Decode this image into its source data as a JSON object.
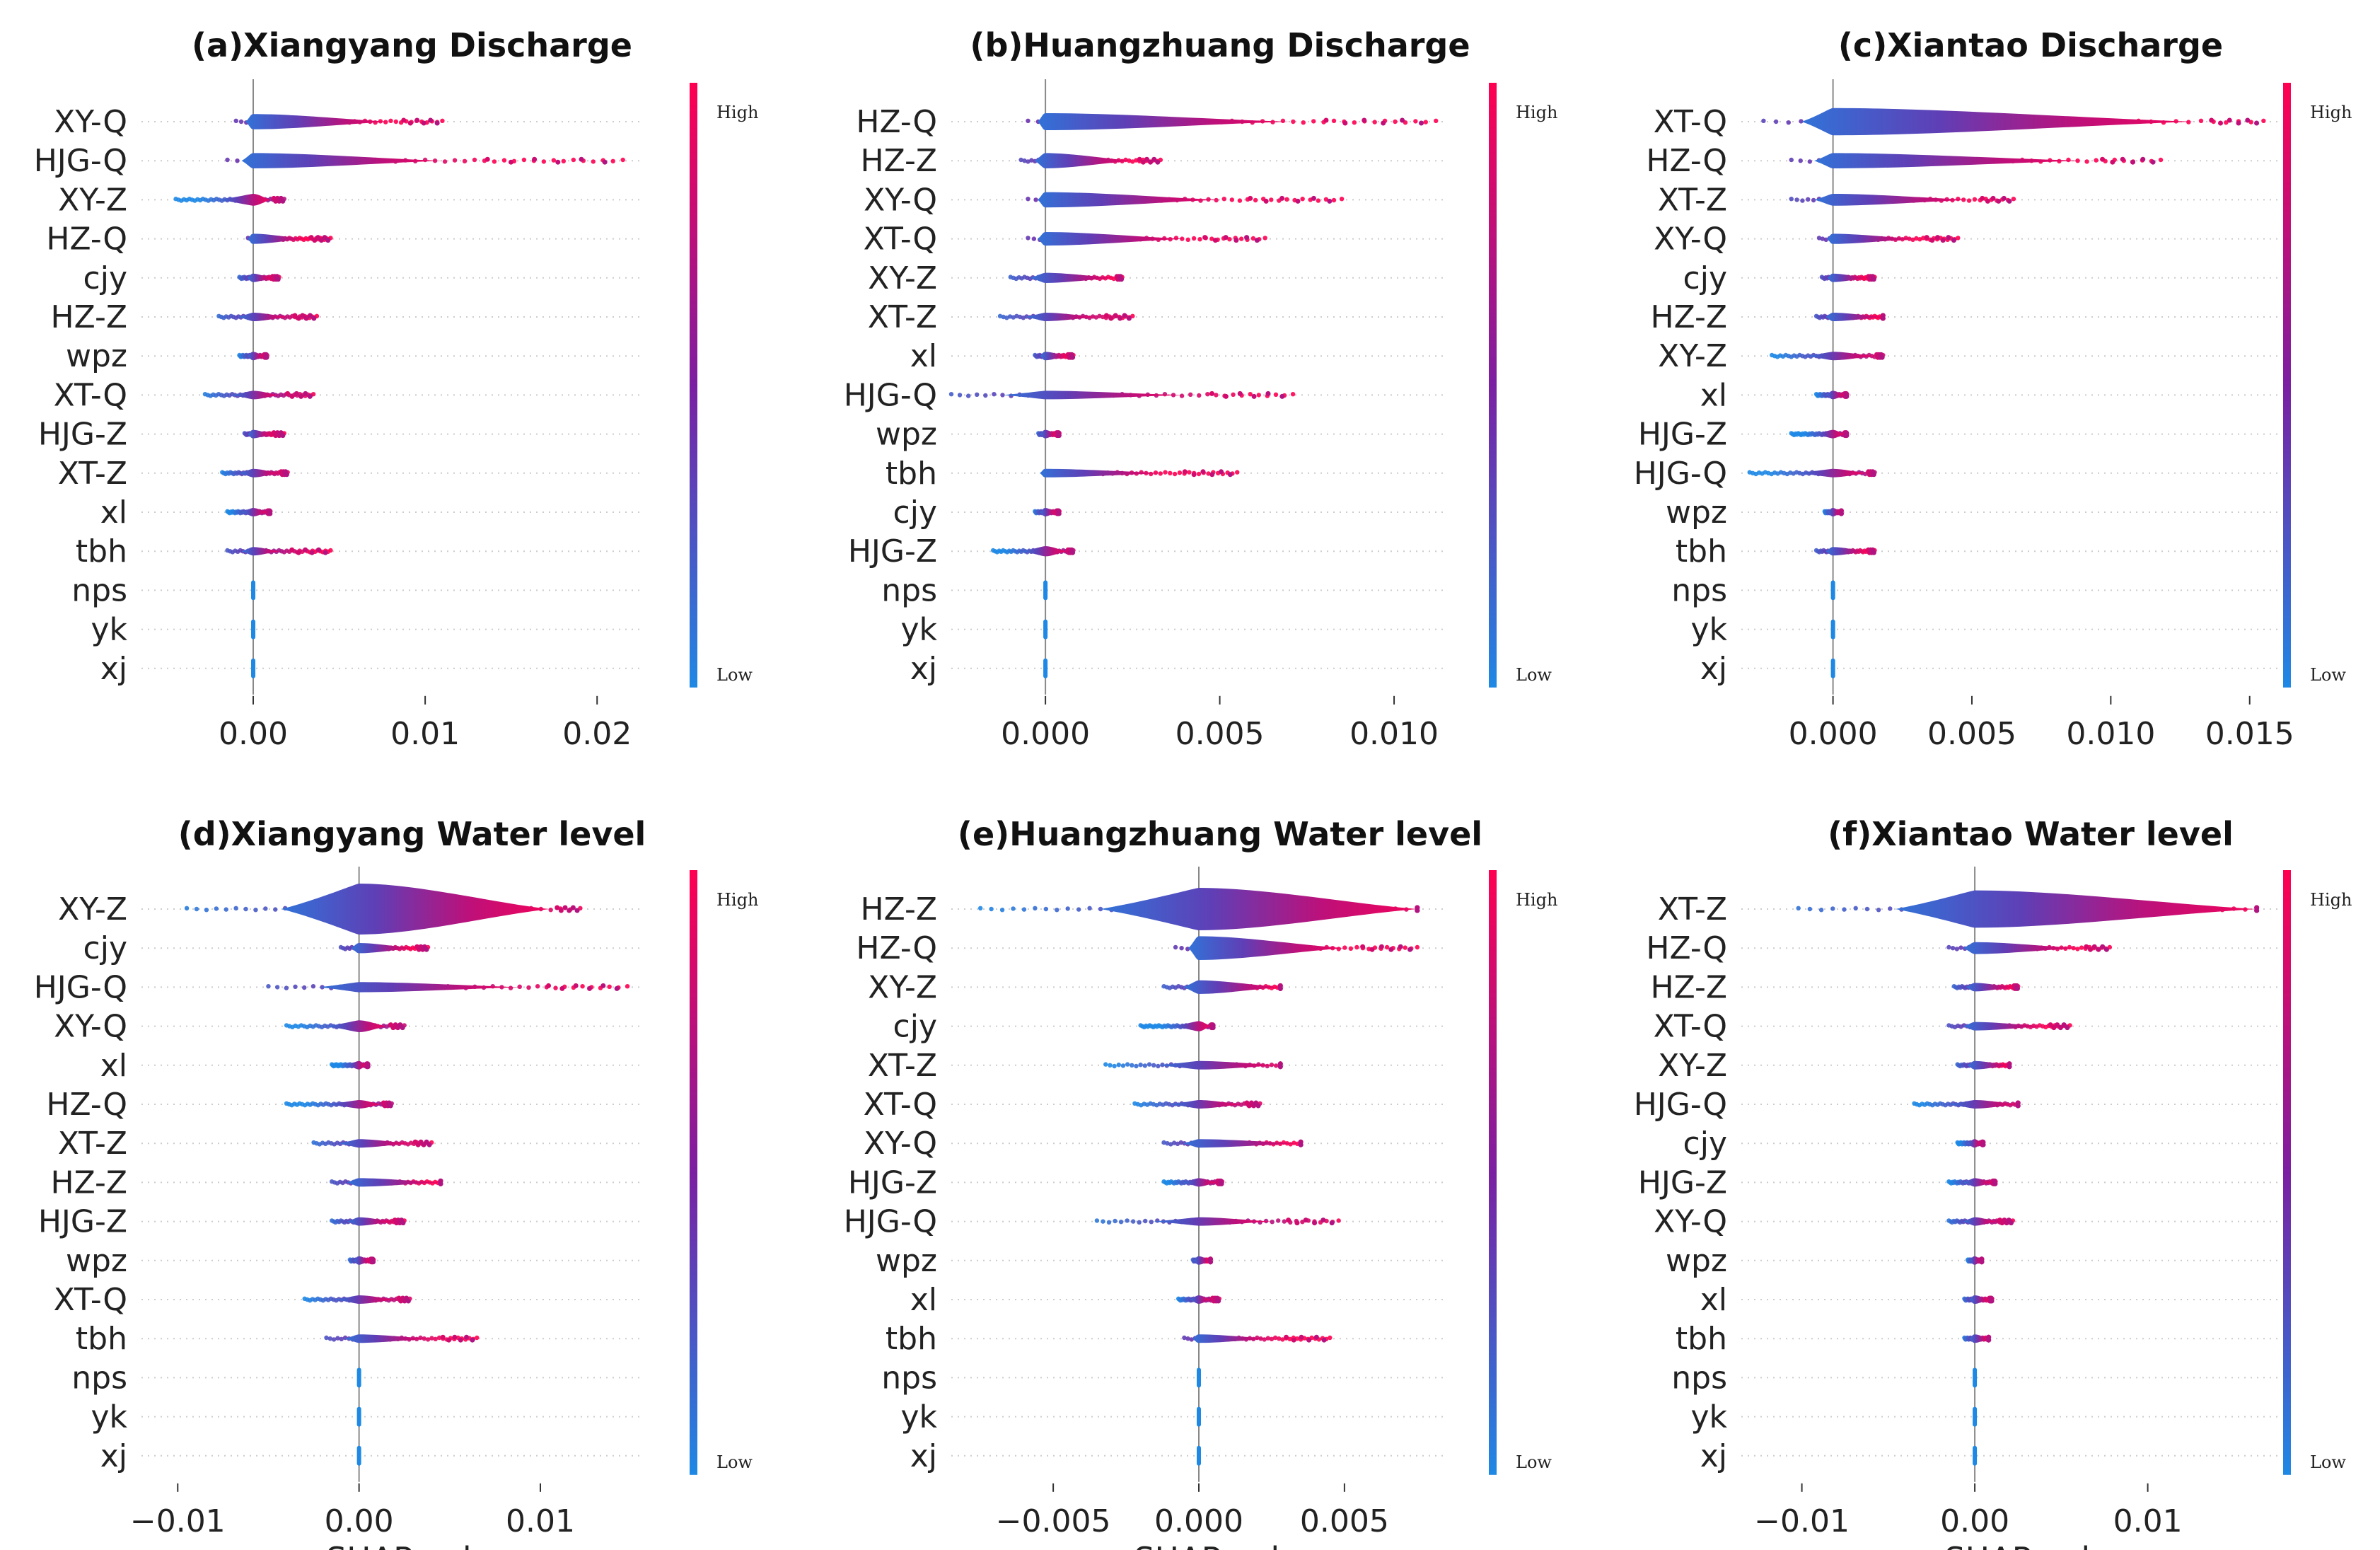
{
  "chart_data": [
    {
      "type": "scatter",
      "subtype": "shap-beeswarm",
      "title": "(a)Xiangyang Discharge",
      "xlabel": "",
      "xlim": [
        -0.0065,
        0.0225
      ],
      "xticks": [
        0.0,
        0.01,
        0.02
      ],
      "xtick_labels": [
        "0.00",
        "0.01",
        "0.02"
      ],
      "colorbar": {
        "high": "High",
        "low": "Low"
      },
      "features": [
        {
          "name": "XY-Q",
          "min": -0.001,
          "max": 0.011,
          "core": 0.008,
          "thick": 0.09
        },
        {
          "name": "HJG-Q",
          "min": -0.0015,
          "max": 0.0215,
          "core": 0.011,
          "thick": 0.09
        },
        {
          "name": "XY-Z",
          "min": -0.0045,
          "max": 0.0018,
          "core": 0.001,
          "thick": 0.07
        },
        {
          "name": "HZ-Q",
          "min": -0.0003,
          "max": 0.0045,
          "core": 0.003,
          "thick": 0.06
        },
        {
          "name": "cjy",
          "min": -0.0008,
          "max": 0.0015,
          "core": 0.001,
          "thick": 0.05
        },
        {
          "name": "HZ-Z",
          "min": -0.002,
          "max": 0.0037,
          "core": 0.002,
          "thick": 0.05
        },
        {
          "name": "wpz",
          "min": -0.0008,
          "max": 0.0008,
          "core": 0.0006,
          "thick": 0.05
        },
        {
          "name": "XT-Q",
          "min": -0.0028,
          "max": 0.0035,
          "core": 0.0015,
          "thick": 0.04
        },
        {
          "name": "HJG-Z",
          "min": -0.0005,
          "max": 0.0018,
          "core": 0.001,
          "thick": 0.05
        },
        {
          "name": "XT-Z",
          "min": -0.0018,
          "max": 0.002,
          "core": 0.0015,
          "thick": 0.05
        },
        {
          "name": "xl",
          "min": -0.0015,
          "max": 0.001,
          "core": 0.0008,
          "thick": 0.04
        },
        {
          "name": "tbh",
          "min": -0.0015,
          "max": 0.0045,
          "core": 0.0015,
          "thick": 0.05
        },
        {
          "name": "nps",
          "min": 0,
          "max": 0,
          "core": 0,
          "thick": 0.02
        },
        {
          "name": "yk",
          "min": 0,
          "max": 0,
          "core": 0,
          "thick": 0.02
        },
        {
          "name": "xj",
          "min": 0,
          "max": 0,
          "core": 0,
          "thick": 0.02
        }
      ]
    },
    {
      "type": "scatter",
      "subtype": "shap-beeswarm",
      "title": "(b)Huangzhuang Discharge",
      "xlabel": "",
      "xlim": [
        -0.0027,
        0.0115
      ],
      "xticks": [
        0.0,
        0.005,
        0.01
      ],
      "xtick_labels": [
        "0.000",
        "0.005",
        "0.010"
      ],
      "colorbar": {
        "high": "High",
        "low": "Low"
      },
      "features": [
        {
          "name": "HZ-Q",
          "min": -0.0005,
          "max": 0.0112,
          "core": 0.007,
          "thick": 0.1
        },
        {
          "name": "HZ-Z",
          "min": -0.0007,
          "max": 0.0033,
          "core": 0.0025,
          "thick": 0.09
        },
        {
          "name": "XY-Q",
          "min": -0.0005,
          "max": 0.0085,
          "core": 0.005,
          "thick": 0.09
        },
        {
          "name": "XT-Q",
          "min": -0.0005,
          "max": 0.0063,
          "core": 0.004,
          "thick": 0.08
        },
        {
          "name": "XY-Z",
          "min": -0.001,
          "max": 0.0022,
          "core": 0.002,
          "thick": 0.06
        },
        {
          "name": "XT-Z",
          "min": -0.0013,
          "max": 0.0025,
          "core": 0.0015,
          "thick": 0.05
        },
        {
          "name": "xl",
          "min": -0.0003,
          "max": 0.0008,
          "core": 0.0006,
          "thick": 0.04
        },
        {
          "name": "HJG-Q",
          "min": -0.0027,
          "max": 0.0071,
          "core": 0.004,
          "thick": 0.04
        },
        {
          "name": "wpz",
          "min": -0.0002,
          "max": 0.0004,
          "core": 0.0003,
          "thick": 0.04
        },
        {
          "name": "tbh",
          "min": 0,
          "max": 0.0055,
          "core": 0.0035,
          "thick": 0.04
        },
        {
          "name": "cjy",
          "min": -0.0003,
          "max": 0.0004,
          "core": 0.0003,
          "thick": 0.04
        },
        {
          "name": "HJG-Z",
          "min": -0.0015,
          "max": 0.0008,
          "core": 0.0006,
          "thick": 0.06
        },
        {
          "name": "nps",
          "min": 0,
          "max": 0,
          "core": 0,
          "thick": 0.02
        },
        {
          "name": "yk",
          "min": 0,
          "max": 0,
          "core": 0,
          "thick": 0.02
        },
        {
          "name": "xj",
          "min": 0,
          "max": 0,
          "core": 0,
          "thick": 0.02
        }
      ]
    },
    {
      "type": "scatter",
      "subtype": "shap-beeswarm",
      "title": "(c)Xiantao Discharge",
      "xlabel": "",
      "xlim": [
        -0.0033,
        0.016
      ],
      "xticks": [
        0.0,
        0.005,
        0.01,
        0.015
      ],
      "xtick_labels": [
        "0.000",
        "0.005",
        "0.010",
        "0.015"
      ],
      "colorbar": {
        "high": "High",
        "low": "Low"
      },
      "features": [
        {
          "name": "XT-Q",
          "min": -0.0025,
          "max": 0.0155,
          "core": 0.013,
          "thick": 0.16
        },
        {
          "name": "HZ-Q",
          "min": -0.0015,
          "max": 0.0118,
          "core": 0.009,
          "thick": 0.09
        },
        {
          "name": "XT-Z",
          "min": -0.0015,
          "max": 0.0065,
          "core": 0.005,
          "thick": 0.07
        },
        {
          "name": "XY-Q",
          "min": -0.0005,
          "max": 0.0045,
          "core": 0.003,
          "thick": 0.06
        },
        {
          "name": "cjy",
          "min": -0.0004,
          "max": 0.0015,
          "core": 0.0012,
          "thick": 0.05
        },
        {
          "name": "HZ-Z",
          "min": -0.0006,
          "max": 0.0018,
          "core": 0.0018,
          "thick": 0.05
        },
        {
          "name": "XY-Z",
          "min": -0.0022,
          "max": 0.0018,
          "core": 0.0015,
          "thick": 0.05
        },
        {
          "name": "xl",
          "min": -0.0006,
          "max": 0.0005,
          "core": 0.0004,
          "thick": 0.04
        },
        {
          "name": "HJG-Z",
          "min": -0.0015,
          "max": 0.0005,
          "core": 0.0004,
          "thick": 0.05
        },
        {
          "name": "HJG-Q",
          "min": -0.003,
          "max": 0.0015,
          "core": 0.0012,
          "thick": 0.05
        },
        {
          "name": "wpz",
          "min": -0.0003,
          "max": 0.0003,
          "core": 0.0003,
          "thick": 0.04
        },
        {
          "name": "tbh",
          "min": -0.0006,
          "max": 0.0015,
          "core": 0.0012,
          "thick": 0.04
        },
        {
          "name": "nps",
          "min": 0,
          "max": 0,
          "core": 0,
          "thick": 0.02
        },
        {
          "name": "yk",
          "min": 0,
          "max": 0,
          "core": 0,
          "thick": 0.02
        },
        {
          "name": "xj",
          "min": 0,
          "max": 0,
          "core": 0,
          "thick": 0.02
        }
      ]
    },
    {
      "type": "scatter",
      "subtype": "shap-beeswarm",
      "title": "(d)Xiangyang Water level",
      "xlabel": "SHAP value",
      "xlim": [
        -0.012,
        0.0155
      ],
      "xticks": [
        -0.01,
        0.0,
        0.01
      ],
      "xtick_labels": [
        "−0.01",
        "0.00",
        "0.01"
      ],
      "colorbar": {
        "high": "High",
        "low": "Low"
      },
      "features": [
        {
          "name": "XY-Z",
          "min": -0.0095,
          "max": 0.0122,
          "core": 0.0105,
          "thick": 0.3
        },
        {
          "name": "cjy",
          "min": -0.001,
          "max": 0.0038,
          "core": 0.003,
          "thick": 0.06
        },
        {
          "name": "HJG-Q",
          "min": -0.005,
          "max": 0.0148,
          "core": 0.009,
          "thick": 0.06
        },
        {
          "name": "XY-Q",
          "min": -0.004,
          "max": 0.0025,
          "core": 0.0015,
          "thick": 0.07
        },
        {
          "name": "xl",
          "min": -0.0015,
          "max": 0.0005,
          "core": 0.0004,
          "thick": 0.05
        },
        {
          "name": "HZ-Q",
          "min": -0.004,
          "max": 0.0018,
          "core": 0.0012,
          "thick": 0.05
        },
        {
          "name": "XT-Z",
          "min": -0.0025,
          "max": 0.004,
          "core": 0.0028,
          "thick": 0.05
        },
        {
          "name": "HZ-Z",
          "min": -0.0015,
          "max": 0.0045,
          "core": 0.0045,
          "thick": 0.05
        },
        {
          "name": "HJG-Z",
          "min": -0.0015,
          "max": 0.0025,
          "core": 0.0018,
          "thick": 0.05
        },
        {
          "name": "wpz",
          "min": -0.0005,
          "max": 0.0008,
          "core": 0.0006,
          "thick": 0.05
        },
        {
          "name": "XT-Q",
          "min": -0.003,
          "max": 0.0028,
          "core": 0.002,
          "thick": 0.05
        },
        {
          "name": "tbh",
          "min": -0.0018,
          "max": 0.0065,
          "core": 0.004,
          "thick": 0.05
        },
        {
          "name": "nps",
          "min": 0,
          "max": 0,
          "core": 0,
          "thick": 0.02
        },
        {
          "name": "yk",
          "min": 0,
          "max": 0,
          "core": 0,
          "thick": 0.02
        },
        {
          "name": "xj",
          "min": 0,
          "max": 0,
          "core": 0,
          "thick": 0.02
        }
      ]
    },
    {
      "type": "scatter",
      "subtype": "shap-beeswarm",
      "title": "(e)Huangzhuang Water level",
      "xlabel": "SHAP value",
      "xlim": [
        -0.0085,
        0.0085
      ],
      "xticks": [
        -0.005,
        0.0,
        0.005
      ],
      "xtick_labels": [
        "−0.005",
        "0.000",
        "0.005"
      ],
      "colorbar": {
        "high": "High",
        "low": "Low"
      },
      "features": [
        {
          "name": "HZ-Z",
          "min": -0.0075,
          "max": 0.0075,
          "core": 0.0075,
          "thick": 0.25
        },
        {
          "name": "HZ-Q",
          "min": -0.0008,
          "max": 0.0075,
          "core": 0.005,
          "thick": 0.14
        },
        {
          "name": "XY-Z",
          "min": -0.0012,
          "max": 0.0028,
          "core": 0.0028,
          "thick": 0.08
        },
        {
          "name": "cjy",
          "min": -0.002,
          "max": 0.0005,
          "core": 0.0004,
          "thick": 0.06
        },
        {
          "name": "XT-Z",
          "min": -0.0032,
          "max": 0.0028,
          "core": 0.0028,
          "thick": 0.05
        },
        {
          "name": "XT-Q",
          "min": -0.0022,
          "max": 0.0021,
          "core": 0.0015,
          "thick": 0.05
        },
        {
          "name": "XY-Q",
          "min": -0.0012,
          "max": 0.0035,
          "core": 0.0035,
          "thick": 0.05
        },
        {
          "name": "HJG-Z",
          "min": -0.0012,
          "max": 0.0008,
          "core": 0.0006,
          "thick": 0.05
        },
        {
          "name": "HJG-Q",
          "min": -0.0035,
          "max": 0.0048,
          "core": 0.0025,
          "thick": 0.05
        },
        {
          "name": "wpz",
          "min": -0.0002,
          "max": 0.0004,
          "core": 0.0004,
          "thick": 0.04
        },
        {
          "name": "xl",
          "min": -0.0007,
          "max": 0.0007,
          "core": 0.0004,
          "thick": 0.04
        },
        {
          "name": "tbh",
          "min": -0.0005,
          "max": 0.0045,
          "core": 0.0025,
          "thick": 0.04
        },
        {
          "name": "nps",
          "min": 0,
          "max": 0,
          "core": 0,
          "thick": 0.02
        },
        {
          "name": "yk",
          "min": 0,
          "max": 0,
          "core": 0,
          "thick": 0.02
        },
        {
          "name": "xj",
          "min": 0,
          "max": 0,
          "core": 0,
          "thick": 0.02
        }
      ]
    },
    {
      "type": "scatter",
      "subtype": "shap-beeswarm",
      "title": "(f)Xiantao Water level",
      "xlabel": "SHAP value",
      "xlim": [
        -0.0135,
        0.0175
      ],
      "xticks": [
        -0.01,
        0.0,
        0.01
      ],
      "xtick_labels": [
        "−0.01",
        "0.00",
        "0.01"
      ],
      "colorbar": {
        "high": "High",
        "low": "Low"
      },
      "features": [
        {
          "name": "XT-Z",
          "min": -0.0102,
          "max": 0.0163,
          "core": 0.0163,
          "thick": 0.22
        },
        {
          "name": "HZ-Q",
          "min": -0.0015,
          "max": 0.0078,
          "core": 0.006,
          "thick": 0.07
        },
        {
          "name": "HZ-Z",
          "min": -0.0012,
          "max": 0.0025,
          "core": 0.0022,
          "thick": 0.05
        },
        {
          "name": "XT-Q",
          "min": -0.0015,
          "max": 0.0055,
          "core": 0.004,
          "thick": 0.05
        },
        {
          "name": "XY-Z",
          "min": -0.001,
          "max": 0.002,
          "core": 0.002,
          "thick": 0.05
        },
        {
          "name": "HJG-Q",
          "min": -0.0035,
          "max": 0.0025,
          "core": 0.0025,
          "thick": 0.05
        },
        {
          "name": "cjy",
          "min": -0.001,
          "max": 0.0005,
          "core": 0.0004,
          "thick": 0.04
        },
        {
          "name": "HJG-Z",
          "min": -0.0015,
          "max": 0.0012,
          "core": 0.001,
          "thick": 0.04
        },
        {
          "name": "XY-Q",
          "min": -0.0015,
          "max": 0.0022,
          "core": 0.0012,
          "thick": 0.04
        },
        {
          "name": "wpz",
          "min": -0.0004,
          "max": 0.0004,
          "core": 0.0004,
          "thick": 0.04
        },
        {
          "name": "xl",
          "min": -0.0006,
          "max": 0.001,
          "core": 0.0008,
          "thick": 0.04
        },
        {
          "name": "tbh",
          "min": -0.0006,
          "max": 0.0008,
          "core": 0.0008,
          "thick": 0.04
        },
        {
          "name": "nps",
          "min": 0,
          "max": 0,
          "core": 0,
          "thick": 0.02
        },
        {
          "name": "yk",
          "min": 0,
          "max": 0,
          "core": 0,
          "thick": 0.02
        },
        {
          "name": "xj",
          "min": 0,
          "max": 0,
          "core": 0,
          "thick": 0.02
        }
      ]
    }
  ],
  "colors": {
    "low": "#1e88e5",
    "high": "#ff0052",
    "mid": "#7b1fa2",
    "axis": "#333333",
    "grid": "#cccccc"
  }
}
